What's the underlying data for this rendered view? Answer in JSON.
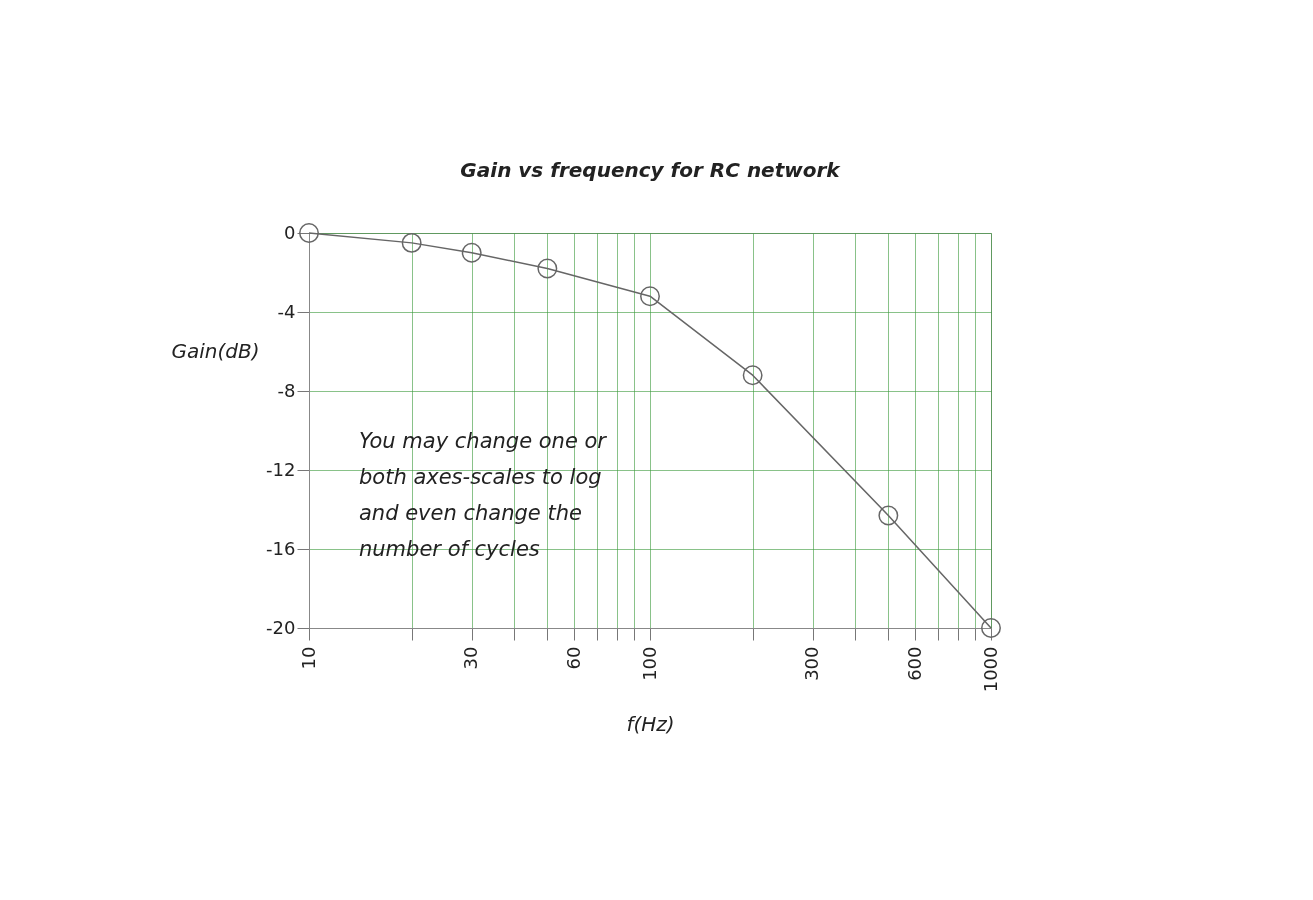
{
  "chart_data": {
    "type": "line",
    "title": "Gain vs frequency for RC network",
    "xlabel": "f(Hz)",
    "ylabel": "Gain(dB)",
    "x": [
      10,
      20,
      30,
      50,
      100,
      200,
      500,
      1000
    ],
    "series": [
      {
        "color": "#666666",
        "values": [
          0,
          -0.5,
          -1,
          -1.8,
          -3.2,
          -7.2,
          -14.3,
          -20
        ]
      }
    ],
    "log": "x",
    "xlim": [
      10,
      1000
    ],
    "xticks": [
      10,
      {
        "value": 20,
        "label": null
      },
      30,
      {
        "value": 40,
        "label": null
      },
      {
        "value": 50,
        "label": null
      },
      60,
      {
        "value": 70,
        "label": null
      },
      {
        "value": 80,
        "label": null
      },
      {
        "value": 90,
        "label": null
      },
      100,
      {
        "value": 200,
        "label": null
      },
      300,
      {
        "value": 400,
        "label": null
      },
      {
        "value": 500,
        "label": null
      },
      600,
      {
        "value": 700,
        "label": null
      },
      {
        "value": 800,
        "label": null
      },
      {
        "value": 900,
        "label": null
      },
      1000
    ],
    "ylim": [
      -20,
      0
    ],
    "yticks": [
      0,
      -4,
      -8,
      -12,
      -16,
      -20
    ],
    "grid": true,
    "marker": "circle",
    "line_style": "solid",
    "annotations": [
      "You may change one or both axes-scales to log and even change the number of cycles"
    ]
  }
}
